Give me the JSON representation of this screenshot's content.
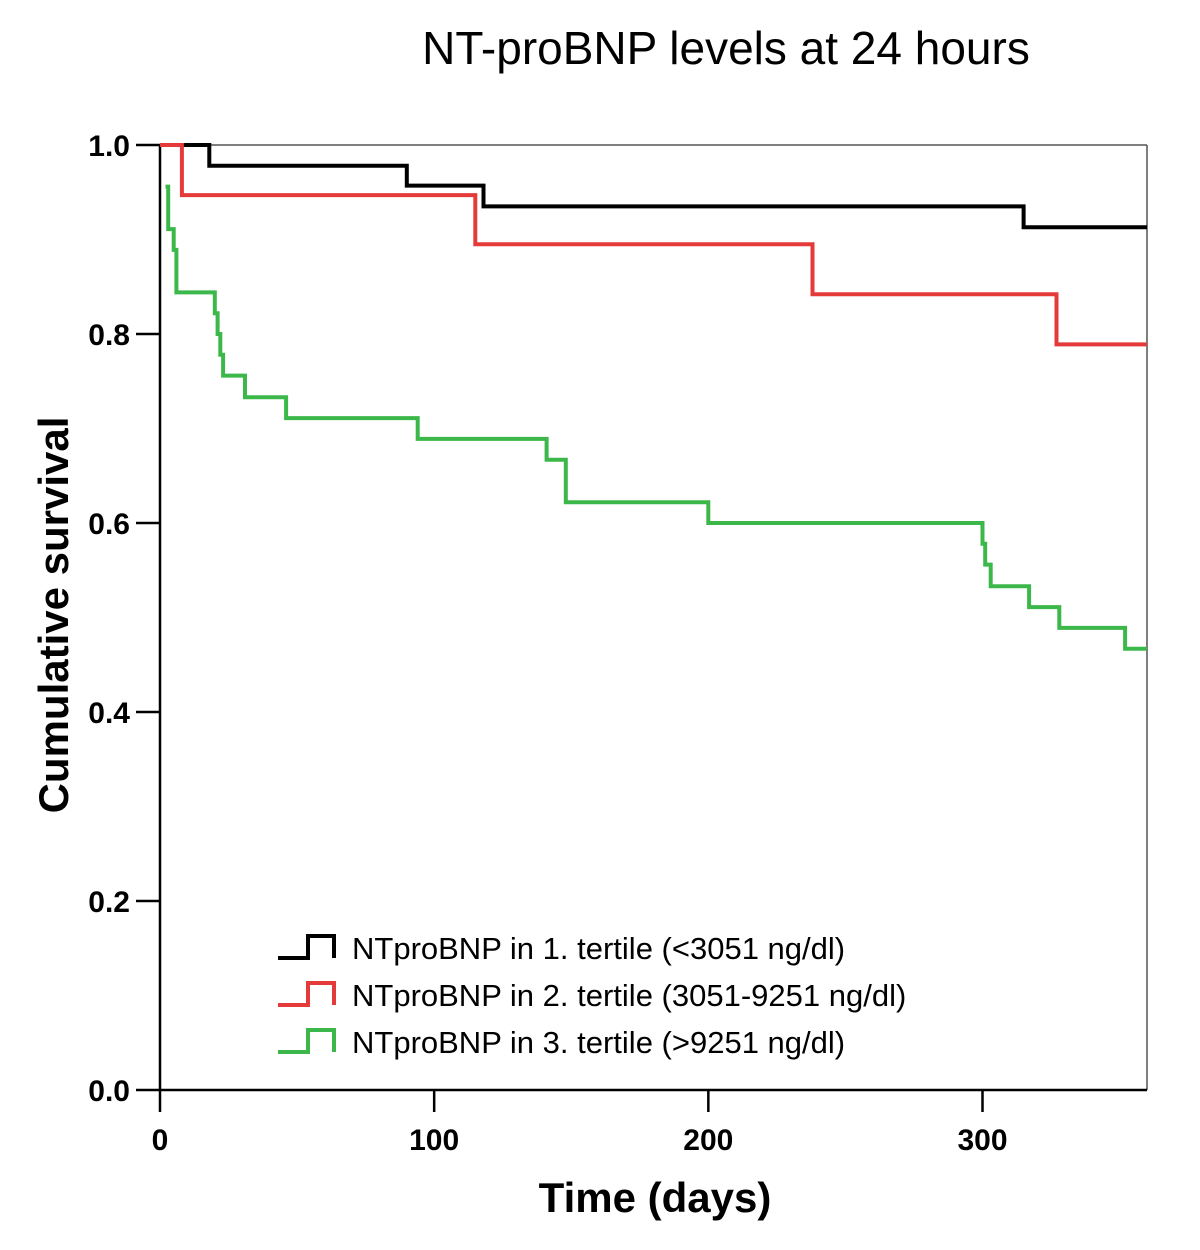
{
  "chart_data": {
    "type": "line",
    "subtype": "kaplan-meier step",
    "title": "NT-proBNP levels at 24 hours",
    "xlabel": "Time (days)",
    "ylabel": "Cumulative survival",
    "xlim": [
      0,
      360
    ],
    "ylim": [
      0,
      1.0
    ],
    "x_ticks": [
      0,
      100,
      200,
      300
    ],
    "x_tick_labels": [
      "0",
      "100",
      "200",
      "300"
    ],
    "y_ticks": [
      0,
      0.2,
      0.4,
      0.6,
      0.8,
      1.0
    ],
    "y_tick_labels": [
      "0.0",
      "0.2",
      "0.4",
      "0.6",
      "0.8",
      "1.0"
    ],
    "grid": false,
    "legend_position": "bottom-center",
    "series": [
      {
        "name": "NTproBNP in 1. tertile (<3051 ng/dl)",
        "color": "#000000",
        "x": [
          0,
          18,
          90,
          118,
          315,
          360
        ],
        "y": [
          1.0,
          0.978,
          0.957,
          0.935,
          0.913,
          0.913
        ]
      },
      {
        "name": "NTproBNP in 2. tertile (3051-9251 ng/dl)",
        "color": "#e53a3a",
        "x": [
          0,
          8,
          115,
          238,
          327,
          360
        ],
        "y": [
          1.0,
          0.947,
          0.895,
          0.842,
          0.789,
          0.789
        ]
      },
      {
        "name": "NTproBNP in 3. tertile (>9251 ng/dl)",
        "color": "#3cb84a",
        "x": [
          2,
          3,
          5,
          6,
          20,
          21,
          22,
          23,
          31,
          46,
          94,
          141,
          148,
          200,
          300,
          301,
          303,
          317,
          328,
          352,
          360
        ],
        "y": [
          0.956,
          0.911,
          0.889,
          0.844,
          0.822,
          0.8,
          0.778,
          0.756,
          0.733,
          0.711,
          0.689,
          0.667,
          0.622,
          0.6,
          0.578,
          0.556,
          0.533,
          0.511,
          0.489,
          0.467,
          0.467
        ]
      }
    ]
  }
}
